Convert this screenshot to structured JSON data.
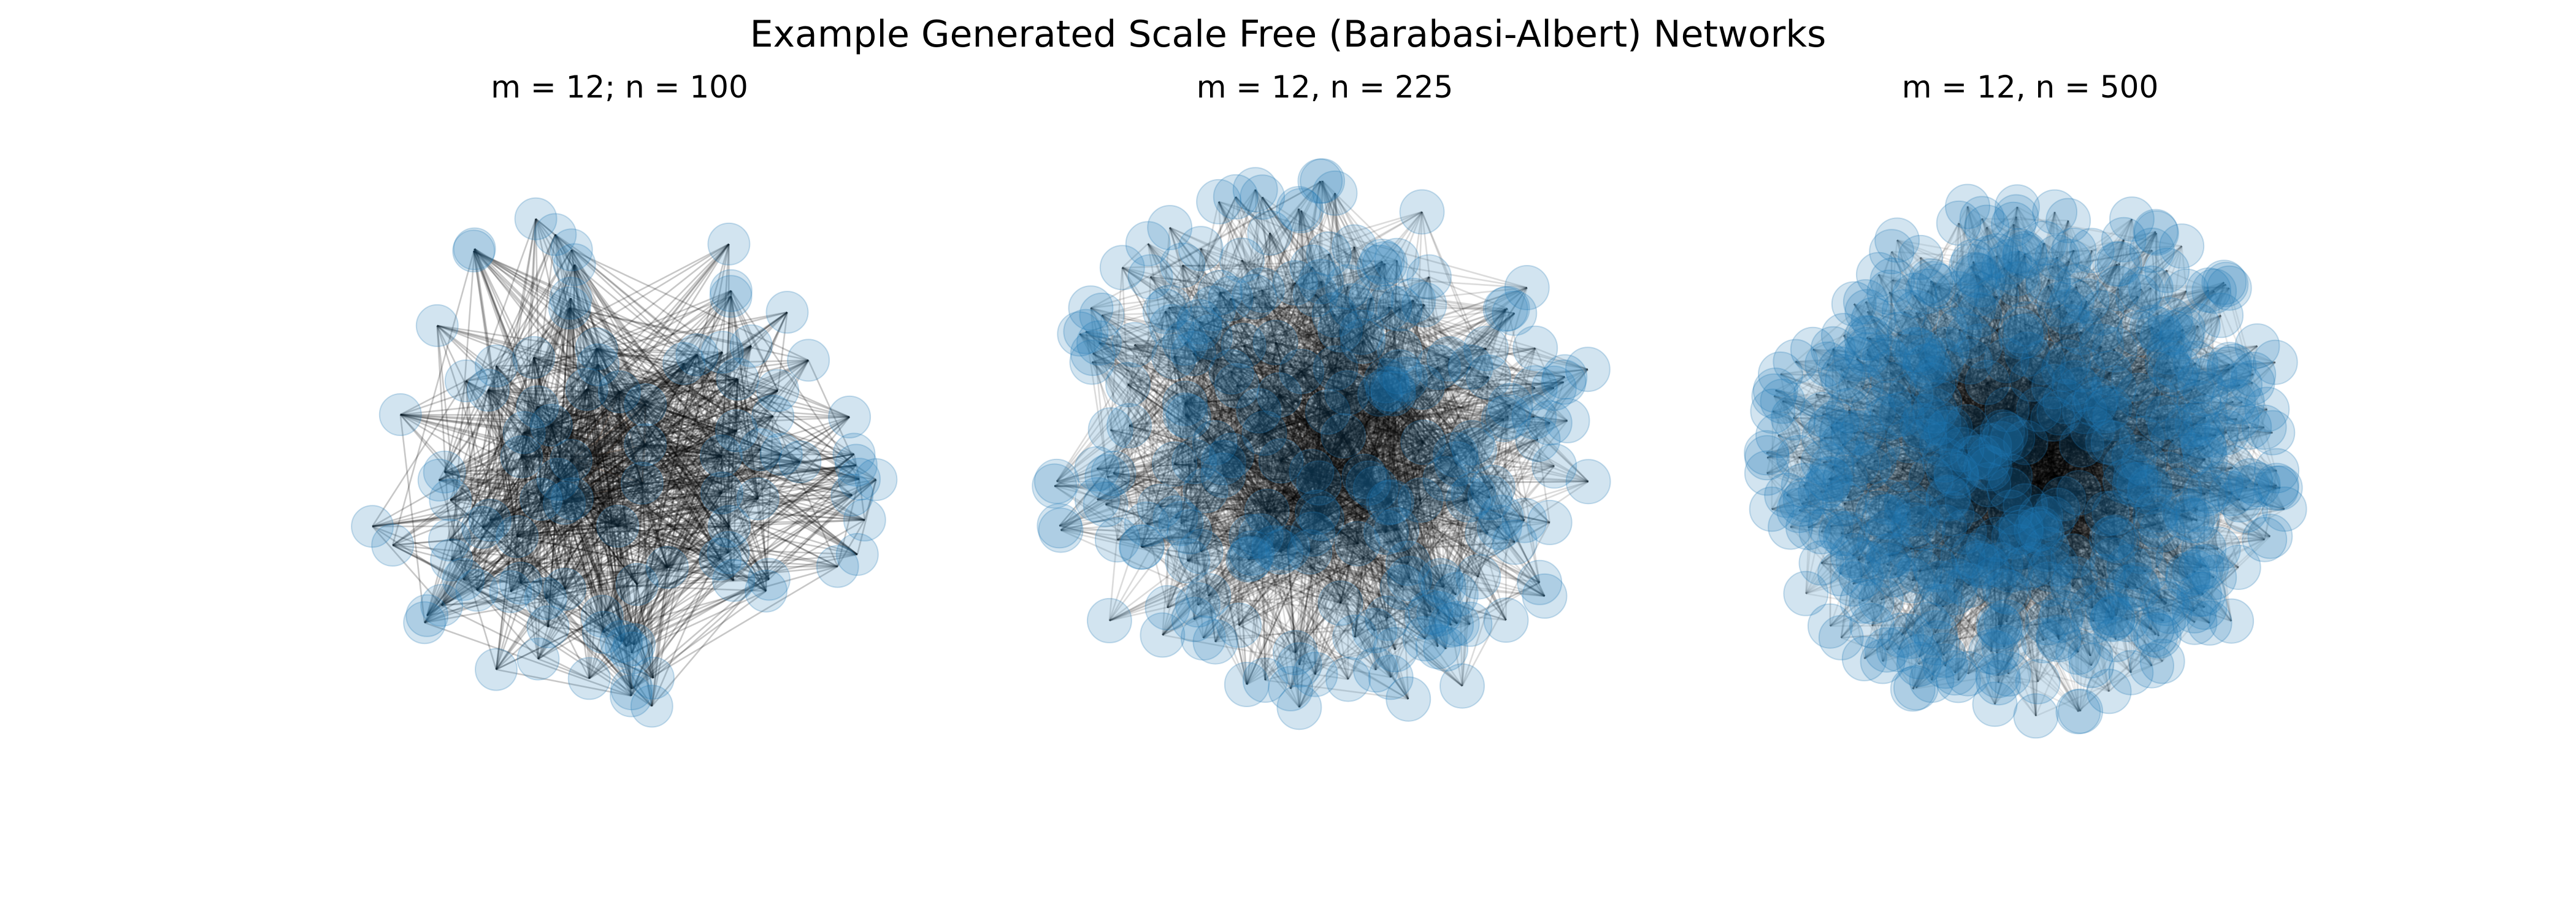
{
  "figure": {
    "title": "Example Generated Scale Free (Barabasi-Albert) Networks"
  },
  "style": {
    "node_color": "#1f77b4",
    "edge_color": "#000000",
    "hub_edge_color": "#8b4513",
    "background": "#ffffff"
  },
  "panels": [
    {
      "title": "m = 12; n = 100",
      "m": 12,
      "n": 100
    },
    {
      "title": "m = 12, n = 225",
      "m": 12,
      "n": 225
    },
    {
      "title": "m = 12, n = 500",
      "m": 12,
      "n": 500
    }
  ]
}
